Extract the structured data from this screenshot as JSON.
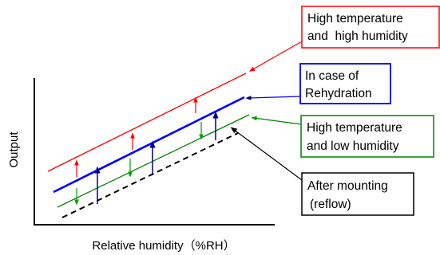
{
  "axes": {
    "x_label": "Relative humidity（%RH）",
    "y_label": "Output"
  },
  "curves": [
    {
      "id": "high-temp-high-humidity",
      "label_lines": [
        "High temperature",
        "and  high humidity"
      ],
      "color": "#ff0000",
      "style": "solid"
    },
    {
      "id": "rehydration",
      "label_lines": [
        "In case of",
        "Rehydration"
      ],
      "color": "#0000ff",
      "style": "solid"
    },
    {
      "id": "high-temp-low-humidity",
      "label_lines": [
        "High temperature",
        "and low humidity"
      ],
      "color": "#008000",
      "style": "solid"
    },
    {
      "id": "after-mounting",
      "label_lines": [
        "After mounting",
        "(reflow)"
      ],
      "color": "#000000",
      "style": "dashed"
    }
  ],
  "arrow_colors": {
    "red": "#ff0000",
    "green": "#00a000",
    "navy": "#000080"
  }
}
